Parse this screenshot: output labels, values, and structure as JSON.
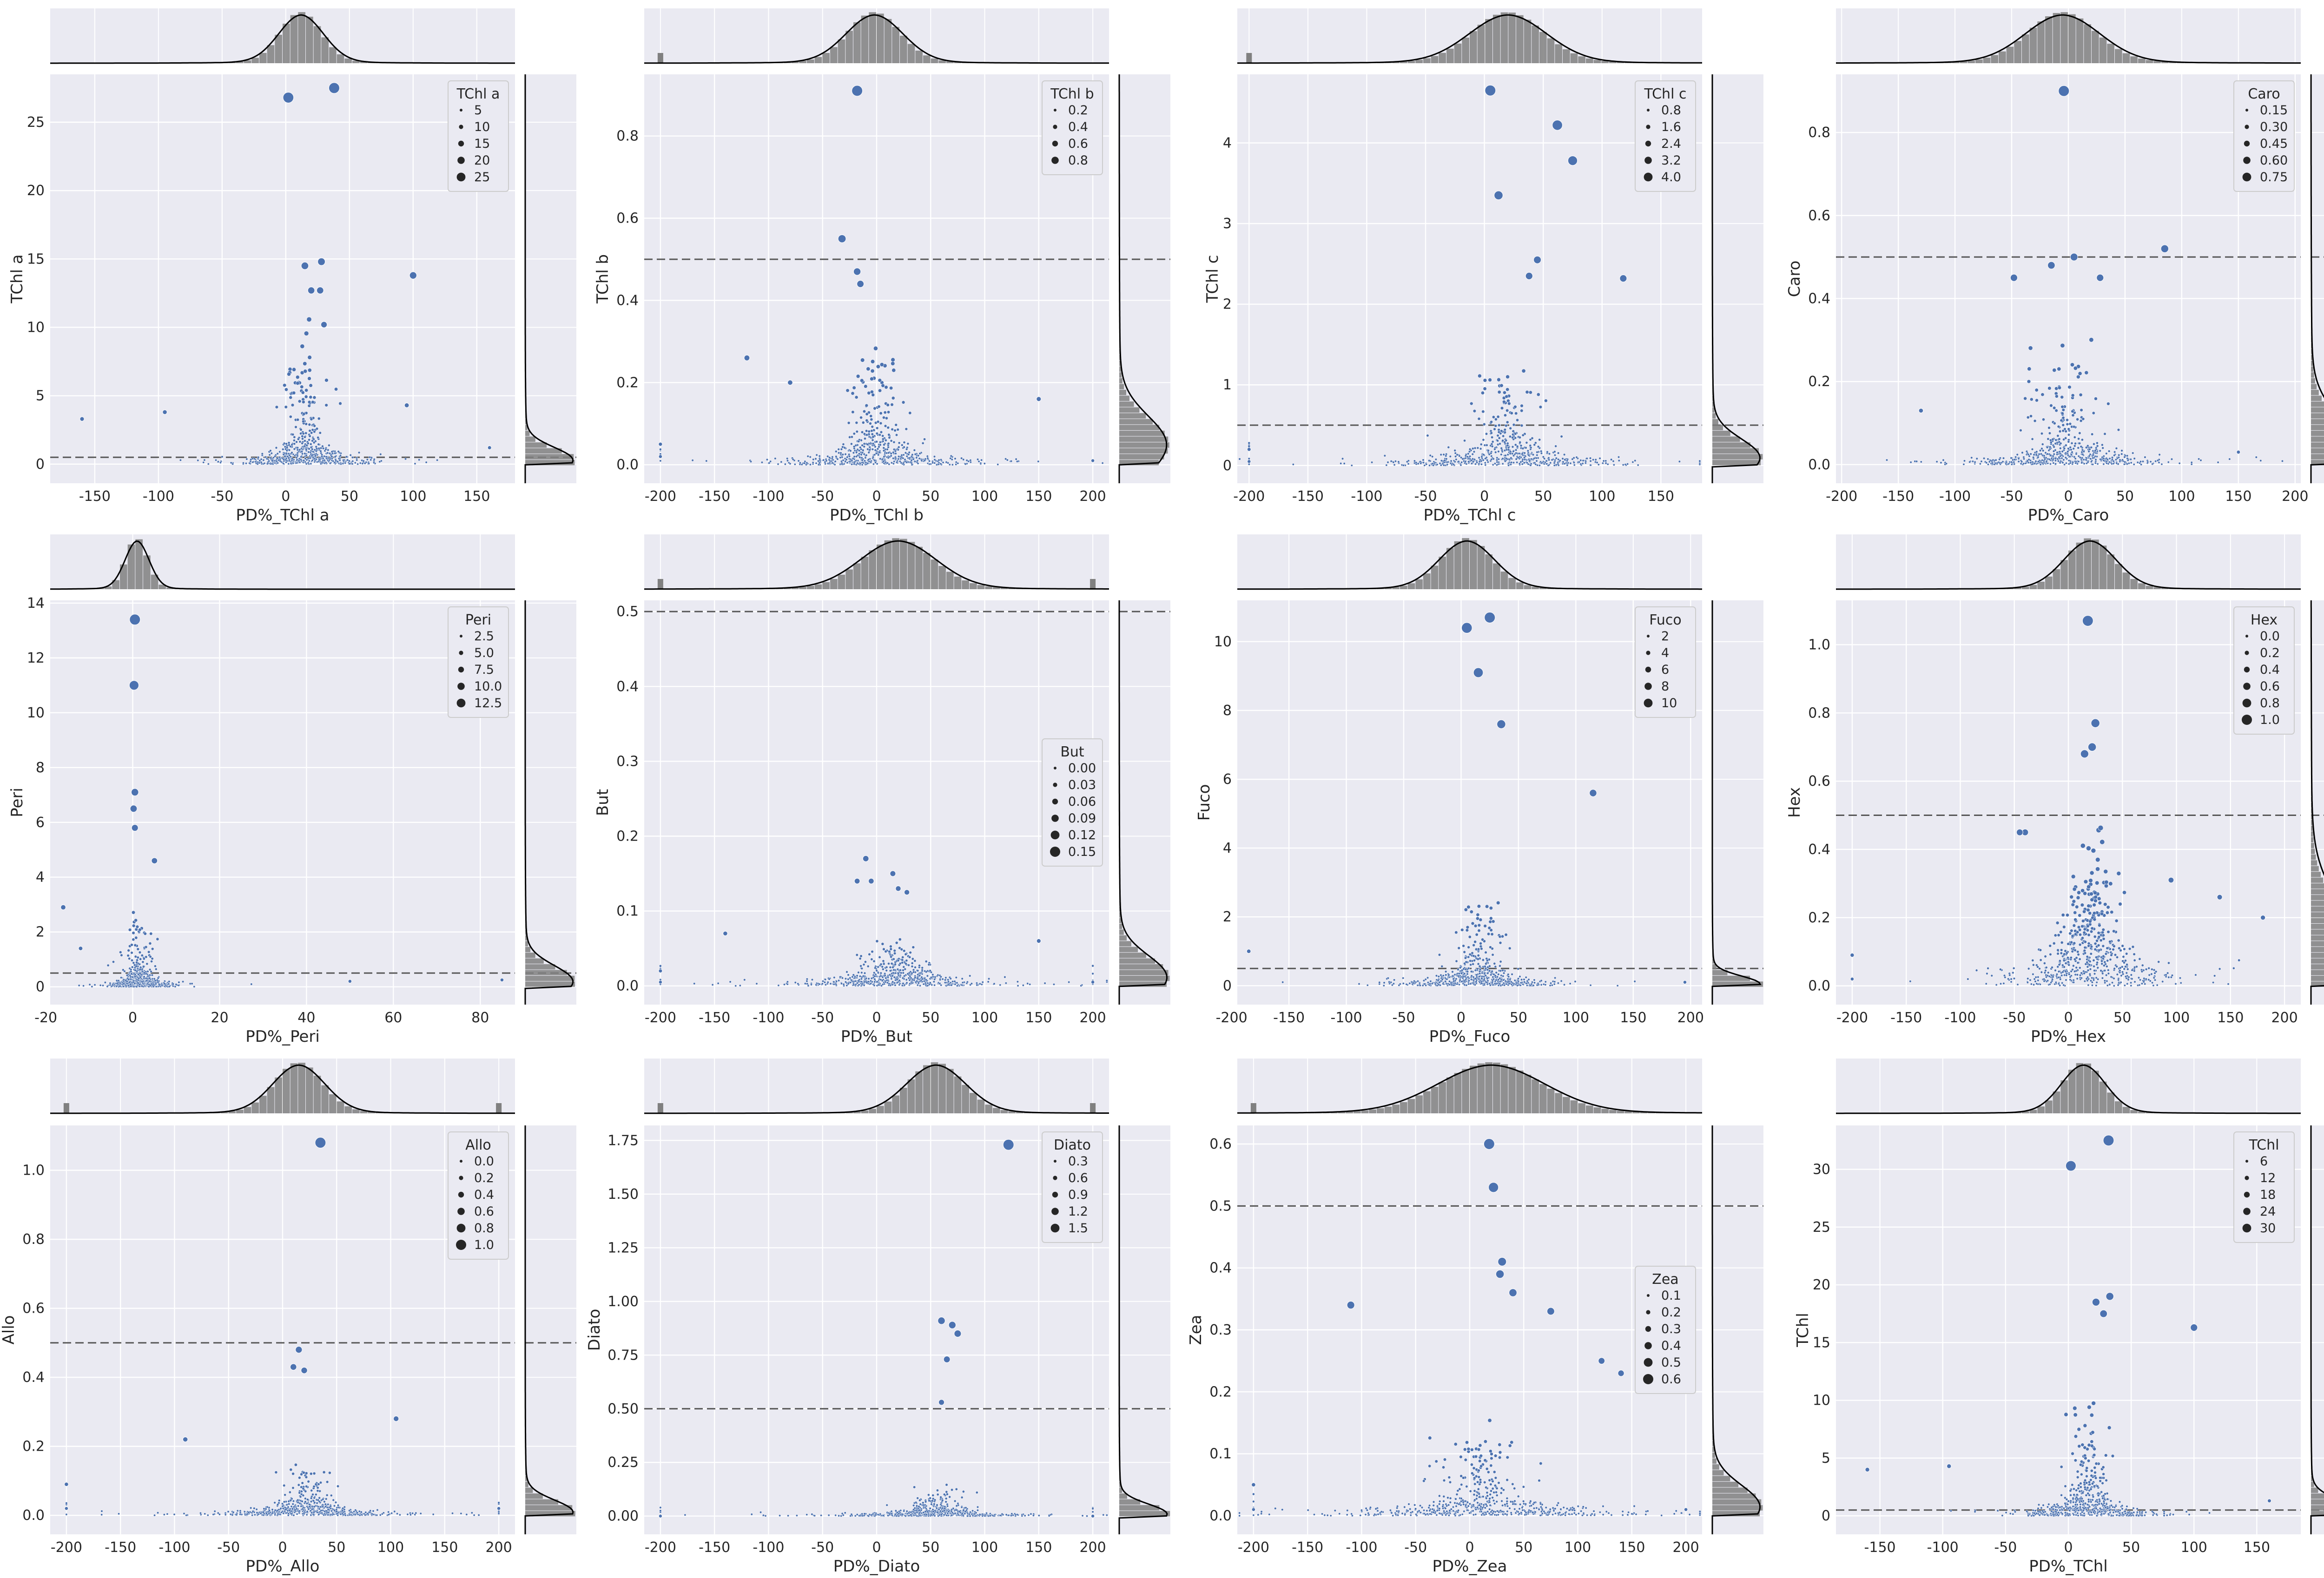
{
  "figure": {
    "background": "#ffffff",
    "plot_background": "#eaeaf2",
    "grid_color": "#ffffff",
    "point_color": "#4c72b0",
    "hist_color": "#808080",
    "kde_color": "#000000",
    "reference_line_color": "#555555",
    "reference_y": 0.5
  },
  "chart_data": [
    {
      "type": "scatter",
      "title": "",
      "xlabel": "PD%_TChl a",
      "ylabel": "TChl a",
      "xlim": [
        -185,
        180
      ],
      "ylim": [
        -1.4,
        28.5
      ],
      "xticks": [
        -150,
        -100,
        -50,
        0,
        50,
        100,
        150
      ],
      "yticks": [
        0,
        5,
        10,
        15,
        20,
        25
      ],
      "ytick_labels": [
        "0",
        "5",
        "10",
        "15",
        "20",
        "25"
      ],
      "legend_title": "TChl a",
      "legend_labels": [
        "5",
        "10",
        "15",
        "20",
        "25"
      ],
      "legend_position": "upper right",
      "reference_line": 0.5,
      "x_dist": {
        "center": 12,
        "spread": 16,
        "edge_spikes": []
      },
      "y_dist": {
        "mode": 0.3,
        "spread": 0.8
      },
      "cloud": {
        "cx": 15,
        "sx": 22,
        "base": 0.9,
        "scale": 3.2,
        "exp": 1.2,
        "width": 7
      },
      "highlights": [
        [
          2,
          26.8
        ],
        [
          38,
          27.5
        ],
        [
          100,
          13.8
        ],
        [
          28,
          14.8
        ],
        [
          15,
          14.5
        ],
        [
          20,
          12.7
        ],
        [
          27,
          12.7
        ],
        [
          30,
          10.2
        ],
        [
          95,
          4.3
        ],
        [
          -160,
          3.3
        ],
        [
          -95,
          3.8
        ],
        [
          160,
          1.2
        ]
      ]
    },
    {
      "type": "scatter",
      "title": "",
      "xlabel": "PD%_TChl b",
      "ylabel": "TChl b",
      "xlim": [
        -215,
        215
      ],
      "ylim": [
        -0.045,
        0.95
      ],
      "xticks": [
        -200,
        -150,
        -100,
        -50,
        0,
        50,
        100,
        150,
        200
      ],
      "yticks": [
        0.0,
        0.2,
        0.4,
        0.6,
        0.8
      ],
      "ytick_labels": [
        "0.0",
        "0.2",
        "0.4",
        "0.6",
        "0.8"
      ],
      "legend_title": "TChl b",
      "legend_labels": [
        "0.2",
        "0.4",
        "0.6",
        "0.8"
      ],
      "legend_position": "upper right",
      "reference_line": 0.5,
      "x_dist": {
        "center": -2,
        "spread": 24,
        "edge_spikes": [
          -200
        ]
      },
      "y_dist": {
        "mode": 0.05,
        "spread": 0.06
      },
      "cloud": {
        "cx": -3,
        "sx": 35,
        "base": 0.03,
        "scale": 0.1,
        "exp": 1.4,
        "width": 10
      },
      "highlights": [
        [
          -18,
          0.91
        ],
        [
          -32,
          0.55
        ],
        [
          -18,
          0.47
        ],
        [
          -15,
          0.44
        ],
        [
          -120,
          0.26
        ],
        [
          -80,
          0.2
        ],
        [
          150,
          0.16
        ],
        [
          -200,
          0.02
        ],
        [
          -200,
          0.05
        ],
        [
          200,
          0.01
        ]
      ]
    },
    {
      "type": "scatter",
      "title": "",
      "xlabel": "PD%_TChl c",
      "ylabel": "TChl c",
      "xlim": [
        -210,
        185
      ],
      "ylim": [
        -0.22,
        4.85
      ],
      "xticks": [
        -200,
        -150,
        -100,
        -50,
        0,
        50,
        100,
        150
      ],
      "yticks": [
        0,
        1,
        2,
        3,
        4
      ],
      "ytick_labels": [
        "0",
        "1",
        "2",
        "3",
        "4"
      ],
      "legend_title": "TChl c",
      "legend_labels": [
        "0.8",
        "1.6",
        "2.4",
        "3.2",
        "4.0"
      ],
      "legend_position": "upper right",
      "reference_line": 0.5,
      "x_dist": {
        "center": 20,
        "spread": 30,
        "edge_spikes": [
          -200
        ]
      },
      "y_dist": {
        "mode": 0.1,
        "spread": 0.2
      },
      "cloud": {
        "cx": 20,
        "sx": 40,
        "base": 0.15,
        "scale": 0.45,
        "exp": 1.3,
        "width": 10
      },
      "highlights": [
        [
          5,
          4.65
        ],
        [
          62,
          4.22
        ],
        [
          75,
          3.78
        ],
        [
          12,
          3.35
        ],
        [
          118,
          2.32
        ],
        [
          45,
          2.55
        ],
        [
          38,
          2.35
        ],
        [
          -200,
          0.05
        ],
        [
          -200,
          0.2
        ]
      ]
    },
    {
      "type": "scatter",
      "title": "",
      "xlabel": "PD%_Caro",
      "ylabel": "Caro",
      "xlim": [
        -205,
        205
      ],
      "ylim": [
        -0.045,
        0.94
      ],
      "xticks": [
        -200,
        -150,
        -100,
        -50,
        0,
        50,
        100,
        150,
        200
      ],
      "yticks": [
        0.0,
        0.2,
        0.4,
        0.6,
        0.8
      ],
      "ytick_labels": [
        "0.0",
        "0.2",
        "0.4",
        "0.6",
        "0.8"
      ],
      "legend_title": "Caro",
      "legend_labels": [
        "0.15",
        "0.30",
        "0.45",
        "0.60",
        "0.75"
      ],
      "legend_position": "upper right",
      "reference_line": 0.5,
      "x_dist": {
        "center": -5,
        "spread": 30,
        "edge_spikes": []
      },
      "y_dist": {
        "mode": 0.03,
        "spread": 0.07
      },
      "cloud": {
        "cx": -3,
        "sx": 38,
        "base": 0.03,
        "scale": 0.1,
        "exp": 1.4,
        "width": 10
      },
      "highlights": [
        [
          -4,
          0.9
        ],
        [
          85,
          0.52
        ],
        [
          5,
          0.5
        ],
        [
          -15,
          0.48
        ],
        [
          -48,
          0.45
        ],
        [
          28,
          0.45
        ],
        [
          -130,
          0.13
        ],
        [
          150,
          0.03
        ]
      ]
    },
    {
      "type": "scatter",
      "title": "",
      "xlabel": "PD%_Peri",
      "ylabel": "Peri",
      "xlim": [
        -19,
        88
      ],
      "ylim": [
        -0.65,
        14.1
      ],
      "xticks": [
        -20,
        0,
        20,
        40,
        60,
        80
      ],
      "yticks": [
        0,
        2,
        4,
        6,
        8,
        10,
        12,
        14
      ],
      "ytick_labels": [
        "0",
        "2",
        "4",
        "6",
        "8",
        "10",
        "12",
        "14"
      ],
      "legend_title": "Peri",
      "legend_labels": [
        "2.5",
        "5.0",
        "7.5",
        "10.0",
        "12.5"
      ],
      "legend_position": "upper right",
      "reference_line": 0.5,
      "x_dist": {
        "center": 1,
        "spread": 2.5,
        "edge_spikes": []
      },
      "y_dist": {
        "mode": 0.2,
        "spread": 0.5
      },
      "cloud": {
        "cx": 1.5,
        "sx": 3,
        "base": 0.3,
        "scale": 0.9,
        "exp": 1.4,
        "width": 2.5
      },
      "highlights": [
        [
          0.5,
          13.4
        ],
        [
          0.3,
          11.0
        ],
        [
          0.5,
          7.1
        ],
        [
          0.2,
          6.5
        ],
        [
          0.5,
          5.8
        ],
        [
          5,
          4.6
        ],
        [
          -16,
          2.9
        ],
        [
          -12,
          1.4
        ],
        [
          85,
          0.25
        ],
        [
          50,
          0.2
        ]
      ]
    },
    {
      "type": "scatter",
      "title": "",
      "xlabel": "PD%_But",
      "ylabel": "But",
      "xlim": [
        -215,
        215
      ],
      "ylim": [
        -0.025,
        0.515
      ],
      "xticks": [
        -200,
        -150,
        -100,
        -50,
        0,
        50,
        100,
        150,
        200
      ],
      "yticks": [
        0.0,
        0.1,
        0.2,
        0.3,
        0.4,
        0.5
      ],
      "ytick_labels": [
        "0.0",
        "0.1",
        "0.2",
        "0.3",
        "0.4",
        "0.5"
      ],
      "legend_title": "But",
      "legend_labels": [
        "0.00",
        "0.03",
        "0.06",
        "0.09",
        "0.12",
        "0.15"
      ],
      "legend_position": "center right",
      "reference_line": 0.5,
      "x_dist": {
        "center": 20,
        "spread": 32,
        "edge_spikes": [
          -200,
          200
        ]
      },
      "y_dist": {
        "mode": 0.012,
        "spread": 0.025
      },
      "cloud": {
        "cx": 18,
        "sx": 40,
        "base": 0.015,
        "scale": 0.02,
        "exp": 1.2,
        "width": 12
      },
      "highlights": [
        [
          -10,
          0.17
        ],
        [
          15,
          0.15
        ],
        [
          -18,
          0.14
        ],
        [
          -5,
          0.14
        ],
        [
          20,
          0.13
        ],
        [
          28,
          0.125
        ],
        [
          -140,
          0.07
        ],
        [
          -200,
          0.02
        ],
        [
          -200,
          0.005
        ],
        [
          200,
          0.005
        ],
        [
          150,
          0.06
        ]
      ]
    },
    {
      "type": "scatter",
      "title": "",
      "xlabel": "PD%_Fuco",
      "ylabel": "Fuco",
      "xlim": [
        -195,
        210
      ],
      "ylim": [
        -0.55,
        11.2
      ],
      "xticks": [
        -200,
        -150,
        -100,
        -50,
        0,
        50,
        100,
        150,
        200
      ],
      "yticks": [
        0,
        2,
        4,
        6,
        8,
        10
      ],
      "ytick_labels": [
        "0",
        "2",
        "4",
        "6",
        "8",
        "10"
      ],
      "legend_title": "Fuco",
      "legend_labels": [
        "2",
        "4",
        "6",
        "8",
        "10"
      ],
      "legend_position": "upper right",
      "reference_line": 0.5,
      "x_dist": {
        "center": 5,
        "spread": 22,
        "edge_spikes": []
      },
      "y_dist": {
        "mode": 0.05,
        "spread": 0.2
      },
      "cloud": {
        "cx": 15,
        "sx": 28,
        "base": 0.3,
        "scale": 0.9,
        "exp": 1.5,
        "width": 10
      },
      "highlights": [
        [
          5,
          10.4
        ],
        [
          25,
          10.7
        ],
        [
          15,
          9.1
        ],
        [
          35,
          7.6
        ],
        [
          115,
          5.6
        ],
        [
          -185,
          1.0
        ],
        [
          195,
          0.1
        ]
      ]
    },
    {
      "type": "scatter",
      "title": "",
      "xlabel": "PD%_Hex",
      "ylabel": "Hex",
      "xlim": [
        -215,
        215
      ],
      "ylim": [
        -0.055,
        1.13
      ],
      "xticks": [
        -200,
        -150,
        -100,
        -50,
        0,
        50,
        100,
        150,
        200
      ],
      "yticks": [
        0.0,
        0.2,
        0.4,
        0.6,
        0.8,
        1.0
      ],
      "ytick_labels": [
        "0.0",
        "0.2",
        "0.4",
        "0.6",
        "0.8",
        "1.0"
      ],
      "legend_title": "Hex",
      "legend_labels": [
        "0.0",
        "0.2",
        "0.4",
        "0.6",
        "0.8",
        "1.0"
      ],
      "legend_position": "upper right",
      "reference_line": 0.5,
      "x_dist": {
        "center": 20,
        "spread": 22,
        "edge_spikes": []
      },
      "y_dist": {
        "mode": 0.1,
        "spread": 0.12
      },
      "cloud": {
        "cx": 20,
        "sx": 30,
        "base": 0.12,
        "scale": 0.15,
        "exp": 1.1,
        "width": 12
      },
      "highlights": [
        [
          18,
          1.07
        ],
        [
          25,
          0.77
        ],
        [
          22,
          0.7
        ],
        [
          15,
          0.68
        ],
        [
          -40,
          0.45
        ],
        [
          -45,
          0.45
        ],
        [
          95,
          0.31
        ],
        [
          140,
          0.26
        ],
        [
          180,
          0.2
        ],
        [
          -200,
          0.02
        ],
        [
          -200,
          0.09
        ]
      ]
    },
    {
      "type": "scatter",
      "title": "",
      "xlabel": "PD%_Allo",
      "ylabel": "Allo",
      "xlim": [
        -215,
        215
      ],
      "ylim": [
        -0.055,
        1.13
      ],
      "xticks": [
        -200,
        -150,
        -100,
        -50,
        0,
        50,
        100,
        150,
        200
      ],
      "yticks": [
        0.0,
        0.2,
        0.4,
        0.6,
        0.8,
        1.0
      ],
      "ytick_labels": [
        "0.0",
        "0.2",
        "0.4",
        "0.6",
        "0.8",
        "1.0"
      ],
      "legend_title": "Allo",
      "legend_labels": [
        "0.0",
        "0.2",
        "0.4",
        "0.6",
        "0.8",
        "1.0"
      ],
      "legend_position": "upper right",
      "reference_line": 0.5,
      "x_dist": {
        "center": 15,
        "spread": 22,
        "edge_spikes": [
          -200,
          200
        ]
      },
      "y_dist": {
        "mode": 0.01,
        "spread": 0.03
      },
      "cloud": {
        "cx": 20,
        "sx": 35,
        "base": 0.02,
        "scale": 0.05,
        "exp": 1.5,
        "width": 10
      },
      "highlights": [
        [
          35,
          1.08
        ],
        [
          15,
          0.48
        ],
        [
          10,
          0.43
        ],
        [
          20,
          0.42
        ],
        [
          105,
          0.28
        ],
        [
          -90,
          0.22
        ],
        [
          -200,
          0.09
        ],
        [
          -200,
          0.02
        ],
        [
          200,
          0.02
        ]
      ]
    },
    {
      "type": "scatter",
      "title": "",
      "xlabel": "PD%_Diato",
      "ylabel": "Diato",
      "xlim": [
        -215,
        215
      ],
      "ylim": [
        -0.085,
        1.82
      ],
      "xticks": [
        -200,
        -150,
        -100,
        -50,
        0,
        50,
        100,
        150,
        200
      ],
      "yticks": [
        0.0,
        0.25,
        0.5,
        0.75,
        1.0,
        1.25,
        1.5,
        1.75
      ],
      "ytick_labels": [
        "0.00",
        "0.25",
        "0.50",
        "0.75",
        "1.00",
        "1.25",
        "1.50",
        "1.75"
      ],
      "legend_title": "Diato",
      "legend_labels": [
        "0.3",
        "0.6",
        "0.9",
        "1.2",
        "1.5"
      ],
      "legend_position": "upper right",
      "reference_line": 0.5,
      "x_dist": {
        "center": 55,
        "spread": 25,
        "edge_spikes": [
          -200,
          200
        ]
      },
      "y_dist": {
        "mode": 0.01,
        "spread": 0.04
      },
      "cloud": {
        "cx": 55,
        "sx": 35,
        "base": 0.02,
        "scale": 0.05,
        "exp": 1.5,
        "width": 12
      },
      "highlights": [
        [
          122,
          1.73
        ],
        [
          60,
          0.91
        ],
        [
          70,
          0.89
        ],
        [
          75,
          0.85
        ],
        [
          65,
          0.73
        ],
        [
          60,
          0.53
        ],
        [
          -200,
          0.0
        ],
        [
          200,
          0.0
        ]
      ]
    },
    {
      "type": "scatter",
      "title": "",
      "xlabel": "PD%_Zea",
      "ylabel": "Zea",
      "xlim": [
        -215,
        215
      ],
      "ylim": [
        -0.03,
        0.63
      ],
      "xticks": [
        -200,
        -150,
        -100,
        -50,
        0,
        50,
        100,
        150,
        200
      ],
      "yticks": [
        0.0,
        0.1,
        0.2,
        0.3,
        0.4,
        0.5,
        0.6
      ],
      "ytick_labels": [
        "0.0",
        "0.1",
        "0.2",
        "0.3",
        "0.4",
        "0.5",
        "0.6"
      ],
      "legend_title": "Zea",
      "legend_labels": [
        "0.1",
        "0.2",
        "0.3",
        "0.4",
        "0.5",
        "0.6"
      ],
      "legend_position": "center right",
      "reference_line": 0.5,
      "x_dist": {
        "center": 20,
        "spread": 45,
        "edge_spikes": [
          -200
        ]
      },
      "y_dist": {
        "mode": 0.015,
        "spread": 0.03
      },
      "cloud": {
        "cx": 10,
        "sx": 55,
        "base": 0.02,
        "scale": 0.05,
        "exp": 1.3,
        "width": 14
      },
      "highlights": [
        [
          18,
          0.6
        ],
        [
          22,
          0.53
        ],
        [
          30,
          0.41
        ],
        [
          28,
          0.39
        ],
        [
          40,
          0.36
        ],
        [
          -110,
          0.34
        ],
        [
          75,
          0.33
        ],
        [
          122,
          0.25
        ],
        [
          140,
          0.23
        ],
        [
          -200,
          0.05
        ],
        [
          -200,
          0.01
        ],
        [
          200,
          0.01
        ]
      ]
    },
    {
      "type": "scatter",
      "title": "",
      "xlabel": "PD%_TChl",
      "ylabel": "TChl",
      "xlim": [
        -185,
        185
      ],
      "ylim": [
        -1.6,
        33.8
      ],
      "xticks": [
        -150,
        -100,
        -50,
        0,
        50,
        100,
        150
      ],
      "yticks": [
        0,
        5,
        10,
        15,
        20,
        25,
        30
      ],
      "ytick_labels": [
        "0",
        "5",
        "10",
        "15",
        "20",
        "25",
        "30"
      ],
      "legend_title": "TChl",
      "legend_labels": [
        "6",
        "12",
        "18",
        "24",
        "30"
      ],
      "legend_position": "upper right",
      "reference_line": 0.5,
      "x_dist": {
        "center": 12,
        "spread": 16,
        "edge_spikes": []
      },
      "y_dist": {
        "mode": 0.3,
        "spread": 0.9
      },
      "cloud": {
        "cx": 15,
        "sx": 22,
        "base": 1.0,
        "scale": 3.5,
        "exp": 1.2,
        "width": 7
      },
      "highlights": [
        [
          2,
          30.3
        ],
        [
          32,
          32.5
        ],
        [
          100,
          16.3
        ],
        [
          33,
          19.0
        ],
        [
          22,
          18.5
        ],
        [
          28,
          17.5
        ],
        [
          -160,
          4.0
        ],
        [
          -95,
          4.3
        ],
        [
          160,
          1.3
        ]
      ]
    }
  ]
}
